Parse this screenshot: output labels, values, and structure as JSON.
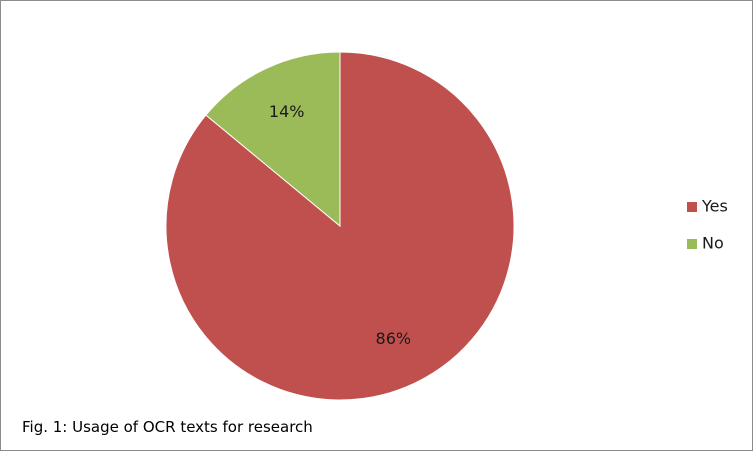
{
  "chart_data": {
    "type": "pie",
    "categories": [
      "Yes",
      "No"
    ],
    "values": [
      86,
      14
    ],
    "data_labels": [
      "86%",
      "14%"
    ],
    "colors": [
      "#c0504d",
      "#9bbb59"
    ],
    "legend_position": "right",
    "start_angle_deg": 0,
    "direction": "clockwise",
    "caption": "Fig. 1: Usage of OCR texts for research"
  }
}
